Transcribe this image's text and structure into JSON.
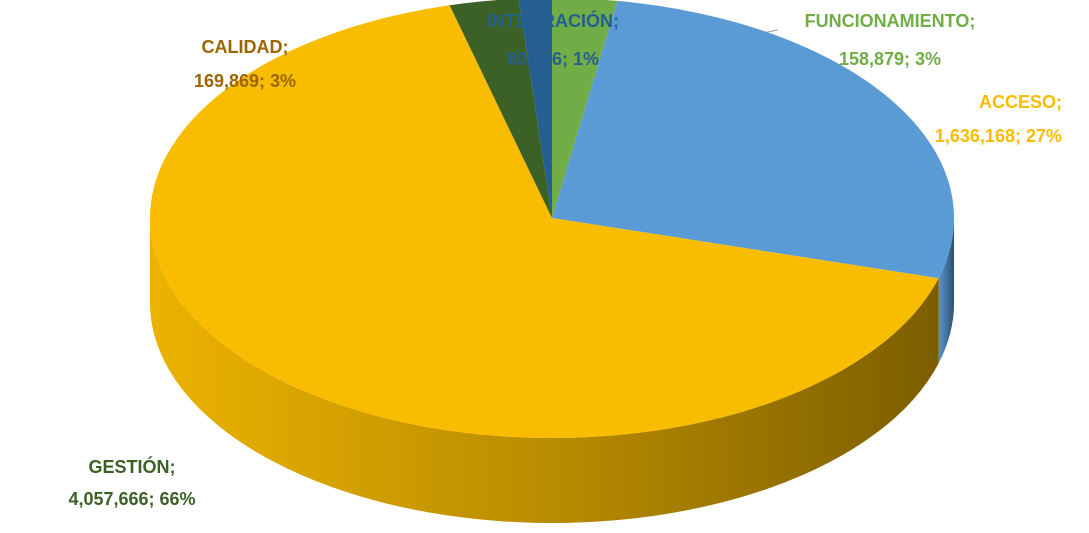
{
  "chart_data": {
    "type": "pie3d",
    "categories": [
      "FUNCIONAMIENTO;",
      "ACCESO;",
      "GESTIÓN;",
      "CALIDAD;",
      "INTEGRACIÓN;"
    ],
    "values": [
      158879,
      1636168,
      4057666,
      169869,
      80266
    ],
    "value_labels": [
      "158,879; 3%",
      "1,636,168; 27%",
      "4,057,666; 66%",
      "169,869; 3%",
      "80,266; 1%"
    ],
    "colors": [
      "#70ad47",
      "#5b9bd5",
      "#f8bc00",
      "#3b6127",
      "#255e91"
    ],
    "label_colors": [
      "#70ad47",
      "#f8bc00",
      "#3b6127",
      "#9c6500",
      "#255e91"
    ]
  }
}
